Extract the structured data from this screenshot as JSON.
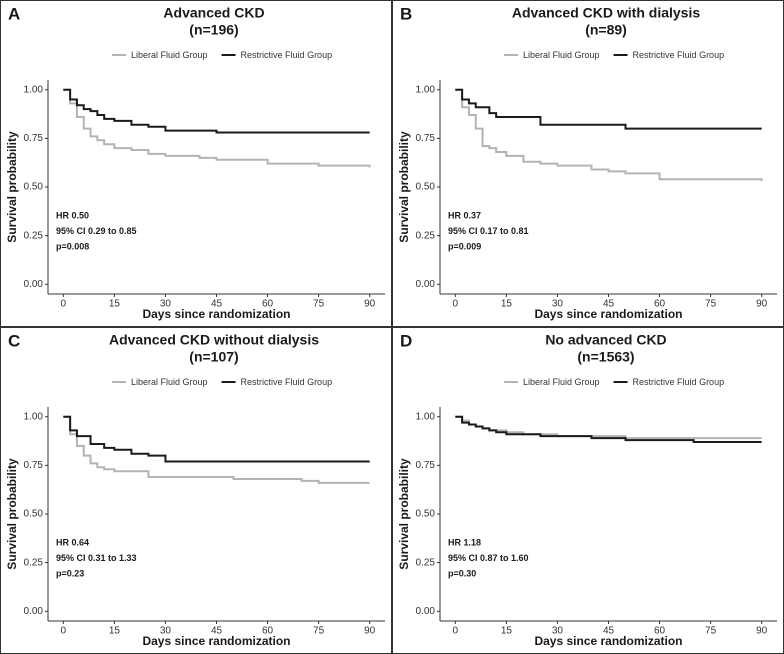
{
  "chart_data": [
    {
      "type": "step",
      "label": "A",
      "title": "Advanced CKD",
      "subtitle": "(n=196)",
      "xlabel": "Days since randomization",
      "ylabel": "Survival probability",
      "legend": "top",
      "annotations": [
        "HR 0.50",
        "95% CI 0.29 to 0.85",
        "p=0.008"
      ],
      "x": [
        0,
        2,
        4,
        6,
        8,
        10,
        12,
        15,
        20,
        25,
        30,
        40,
        45,
        50,
        60,
        70,
        75,
        80,
        90
      ],
      "series": [
        {
          "name": "Liberal Fluid Group",
          "color": "#b3b3b3",
          "values": [
            1.0,
            0.93,
            0.86,
            0.8,
            0.76,
            0.74,
            0.72,
            0.7,
            0.69,
            0.67,
            0.66,
            0.65,
            0.64,
            0.64,
            0.62,
            0.62,
            0.61,
            0.61,
            0.6
          ]
        },
        {
          "name": "Restrictive Fluid Group",
          "color": "#1a1a1a",
          "values": [
            1.0,
            0.95,
            0.92,
            0.9,
            0.89,
            0.87,
            0.85,
            0.84,
            0.82,
            0.81,
            0.79,
            0.79,
            0.78,
            0.78,
            0.78,
            0.78,
            0.78,
            0.78,
            0.78
          ]
        }
      ],
      "xlim": [
        -4.5,
        94.5
      ],
      "xticks": [
        0,
        15,
        30,
        45,
        60,
        75,
        90
      ],
      "ylim": [
        -0.05,
        1.05
      ],
      "yticks": [
        {
          "value": 0,
          "label": "0.00"
        },
        {
          "value": 0.25,
          "label": "0.25"
        },
        {
          "value": 0.5,
          "label": "0.50"
        },
        {
          "value": 0.75,
          "label": "0.75"
        },
        {
          "value": 1,
          "label": "1.00"
        }
      ]
    },
    {
      "type": "step",
      "label": "B",
      "title": "Advanced CKD with dialysis",
      "subtitle": "(n=89)",
      "xlabel": "Days since randomization",
      "ylabel": "Survival probability",
      "legend": "top",
      "annotations": [
        "HR 0.37",
        "95% CI 0.17 to 0.81",
        "p=0.009"
      ],
      "x": [
        0,
        2,
        4,
        6,
        8,
        10,
        12,
        15,
        20,
        25,
        30,
        40,
        45,
        50,
        60,
        70,
        75,
        80,
        90
      ],
      "series": [
        {
          "name": "Liberal Fluid Group",
          "color": "#b3b3b3",
          "values": [
            1.0,
            0.91,
            0.87,
            0.8,
            0.71,
            0.7,
            0.68,
            0.66,
            0.63,
            0.62,
            0.61,
            0.59,
            0.58,
            0.57,
            0.54,
            0.54,
            0.54,
            0.54,
            0.53
          ]
        },
        {
          "name": "Restrictive Fluid Group",
          "color": "#1a1a1a",
          "values": [
            1.0,
            0.95,
            0.93,
            0.91,
            0.91,
            0.88,
            0.86,
            0.86,
            0.86,
            0.82,
            0.82,
            0.82,
            0.82,
            0.8,
            0.8,
            0.8,
            0.8,
            0.8,
            0.8
          ]
        }
      ],
      "xlim": [
        -4.5,
        94.5
      ],
      "xticks": [
        0,
        15,
        30,
        45,
        60,
        75,
        90
      ],
      "ylim": [
        -0.05,
        1.05
      ],
      "yticks": [
        {
          "value": 0,
          "label": "0.00"
        },
        {
          "value": 0.25,
          "label": "0.25"
        },
        {
          "value": 0.5,
          "label": "0.50"
        },
        {
          "value": 0.75,
          "label": "0.75"
        },
        {
          "value": 1,
          "label": "1.00"
        }
      ]
    },
    {
      "type": "step",
      "label": "C",
      "title": "Advanced CKD without dialysis",
      "subtitle": "(n=107)",
      "xlabel": "Days since randomization",
      "ylabel": "Survival probability",
      "legend": "top",
      "annotations": [
        "HR 0.64",
        "95% CI 0.31 to 1.33",
        "p=0.23"
      ],
      "x": [
        0,
        2,
        4,
        6,
        8,
        10,
        12,
        15,
        20,
        25,
        30,
        40,
        45,
        50,
        60,
        70,
        75,
        80,
        90
      ],
      "series": [
        {
          "name": "Liberal Fluid Group",
          "color": "#b3b3b3",
          "values": [
            1.0,
            0.91,
            0.85,
            0.8,
            0.76,
            0.74,
            0.73,
            0.72,
            0.72,
            0.69,
            0.69,
            0.69,
            0.69,
            0.68,
            0.68,
            0.67,
            0.66,
            0.66,
            0.66
          ]
        },
        {
          "name": "Restrictive Fluid Group",
          "color": "#1a1a1a",
          "values": [
            1.0,
            0.93,
            0.9,
            0.9,
            0.86,
            0.86,
            0.84,
            0.83,
            0.81,
            0.8,
            0.77,
            0.77,
            0.77,
            0.77,
            0.77,
            0.77,
            0.77,
            0.77,
            0.77
          ]
        }
      ],
      "xlim": [
        -4.5,
        94.5
      ],
      "xticks": [
        0,
        15,
        30,
        45,
        60,
        75,
        90
      ],
      "ylim": [
        -0.05,
        1.05
      ],
      "yticks": [
        {
          "value": 0,
          "label": "0.00"
        },
        {
          "value": 0.25,
          "label": "0.25"
        },
        {
          "value": 0.5,
          "label": "0.50"
        },
        {
          "value": 0.75,
          "label": "0.75"
        },
        {
          "value": 1,
          "label": "1.00"
        }
      ]
    },
    {
      "type": "step",
      "label": "D",
      "title": "No advanced CKD",
      "subtitle": "(n=1563)",
      "xlabel": "Days since randomization",
      "ylabel": "Survival probability",
      "legend": "top",
      "annotations": [
        "HR 1.18",
        "95% CI 0.87 to 1.60",
        "p=0.30"
      ],
      "x": [
        0,
        2,
        4,
        6,
        8,
        10,
        12,
        15,
        20,
        25,
        30,
        40,
        45,
        50,
        60,
        70,
        75,
        80,
        90
      ],
      "series": [
        {
          "name": "Liberal Fluid Group",
          "color": "#b3b3b3",
          "values": [
            1.0,
            0.98,
            0.96,
            0.95,
            0.94,
            0.93,
            0.93,
            0.92,
            0.91,
            0.91,
            0.9,
            0.9,
            0.9,
            0.89,
            0.89,
            0.89,
            0.89,
            0.89,
            0.89
          ]
        },
        {
          "name": "Restrictive Fluid Group",
          "color": "#1a1a1a",
          "values": [
            1.0,
            0.97,
            0.96,
            0.95,
            0.94,
            0.93,
            0.92,
            0.91,
            0.91,
            0.9,
            0.9,
            0.89,
            0.89,
            0.88,
            0.88,
            0.87,
            0.87,
            0.87,
            0.87
          ]
        }
      ],
      "xlim": [
        -4.5,
        94.5
      ],
      "xticks": [
        0,
        15,
        30,
        45,
        60,
        75,
        90
      ],
      "ylim": [
        -0.05,
        1.05
      ],
      "yticks": [
        {
          "value": 0,
          "label": "0.00"
        },
        {
          "value": 0.25,
          "label": "0.25"
        },
        {
          "value": 0.5,
          "label": "0.50"
        },
        {
          "value": 0.75,
          "label": "0.75"
        },
        {
          "value": 1,
          "label": "1.00"
        }
      ]
    }
  ]
}
